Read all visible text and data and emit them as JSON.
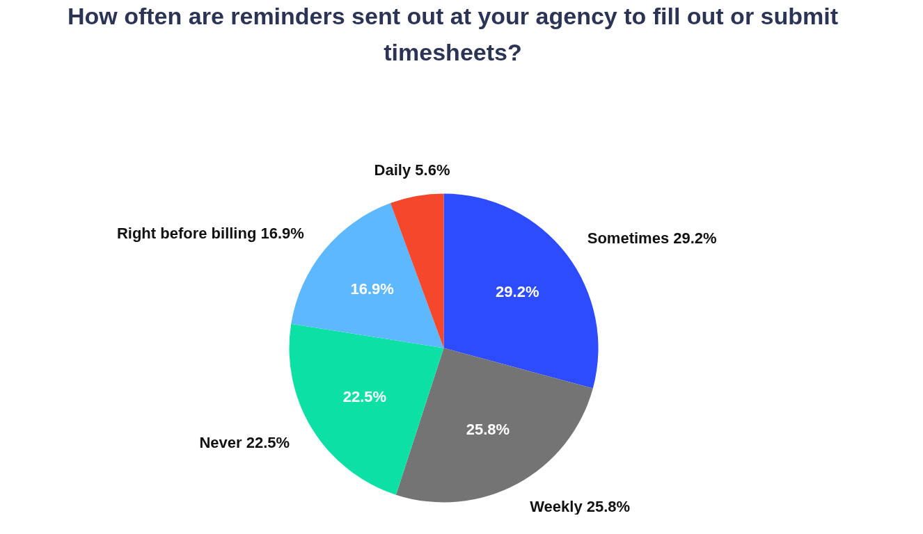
{
  "chart_data": {
    "type": "pie",
    "title": "How often are reminders sent out at your agency to fill out or submit timesheets?",
    "categories": [
      "Sometimes 29.2%",
      "Weekly 25.8%",
      "Never 22.5%",
      "Right before billing 16.9%",
      "Daily 5.6%"
    ],
    "values": [
      29.2,
      25.8,
      22.5,
      16.9,
      5.6
    ],
    "colors": [
      "#2d4bff",
      "#747474",
      "#0ce0a5",
      "#5eb8ff",
      "#f4472b"
    ],
    "value_labels": [
      "29.2%",
      "25.8%",
      "22.5%",
      "16.9%",
      null
    ]
  }
}
